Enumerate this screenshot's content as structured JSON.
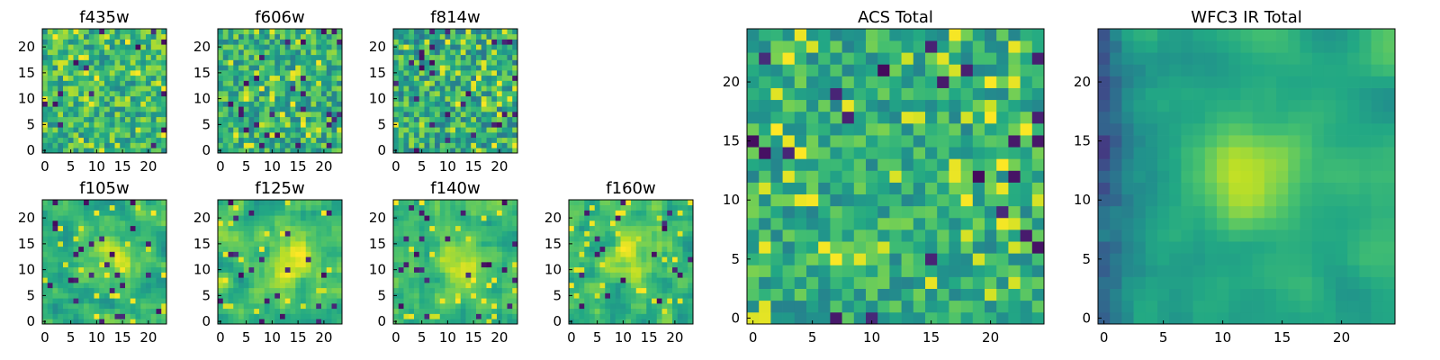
{
  "colormap": "viridis",
  "colors": {
    "low": "#440154",
    "mid": "#21918c",
    "high": "#fde725",
    "frame": "#000000"
  },
  "chart_data": [
    {
      "id": "f435w",
      "type": "heatmap",
      "title": "f435w",
      "grid_size": 24,
      "xlim": [
        0,
        24
      ],
      "ylim": [
        0,
        24
      ],
      "xticks": [
        0,
        5,
        10,
        15,
        20
      ],
      "yticks": [
        0,
        5,
        10,
        15,
        20
      ],
      "texture": "noise",
      "mean": 0.66,
      "spread": 0.22,
      "smooth": 0,
      "dark_rate": 0.04,
      "bright_rate": 0.06,
      "seed": 11
    },
    {
      "id": "f606w",
      "type": "heatmap",
      "title": "f606w",
      "grid_size": 24,
      "xlim": [
        0,
        24
      ],
      "ylim": [
        0,
        24
      ],
      "xticks": [
        0,
        5,
        10,
        15,
        20
      ],
      "yticks": [
        0,
        5,
        10,
        15,
        20
      ],
      "texture": "noise",
      "mean": 0.64,
      "spread": 0.22,
      "smooth": 0,
      "dark_rate": 0.04,
      "bright_rate": 0.06,
      "seed": 23
    },
    {
      "id": "f814w",
      "type": "heatmap",
      "title": "f814w",
      "grid_size": 24,
      "xlim": [
        0,
        24
      ],
      "ylim": [
        0,
        24
      ],
      "xticks": [
        0,
        5,
        10,
        15,
        20
      ],
      "yticks": [
        0,
        5,
        10,
        15,
        20
      ],
      "texture": "noise",
      "mean": 0.62,
      "spread": 0.24,
      "smooth": 0,
      "dark_rate": 0.05,
      "bright_rate": 0.06,
      "seed": 37
    },
    {
      "id": "f105w",
      "type": "heatmap",
      "title": "f105w",
      "grid_size": 24,
      "xlim": [
        0,
        24
      ],
      "ylim": [
        0,
        24
      ],
      "xticks": [
        0,
        5,
        10,
        15,
        20
      ],
      "yticks": [
        0,
        5,
        10,
        15,
        20
      ],
      "texture": "blob",
      "mean": 0.66,
      "spread": 0.18,
      "smooth": 1,
      "dark_rate": 0.05,
      "bright_rate": 0.04,
      "peak": [
        13,
        12
      ],
      "seed": 41
    },
    {
      "id": "f125w",
      "type": "heatmap",
      "title": "f125w",
      "grid_size": 24,
      "xlim": [
        0,
        24
      ],
      "ylim": [
        0,
        24
      ],
      "xticks": [
        0,
        5,
        10,
        15,
        20
      ],
      "yticks": [
        0,
        5,
        10,
        15,
        20
      ],
      "texture": "blob",
      "mean": 0.68,
      "spread": 0.2,
      "smooth": 1,
      "dark_rate": 0.05,
      "bright_rate": 0.05,
      "peak": [
        13,
        12
      ],
      "seed": 53
    },
    {
      "id": "f140w",
      "type": "heatmap",
      "title": "f140w",
      "grid_size": 24,
      "xlim": [
        0,
        24
      ],
      "ylim": [
        0,
        24
      ],
      "xticks": [
        0,
        5,
        10,
        15,
        20
      ],
      "yticks": [
        0,
        5,
        10,
        15,
        20
      ],
      "texture": "blob",
      "mean": 0.66,
      "spread": 0.16,
      "smooth": 1,
      "dark_rate": 0.03,
      "bright_rate": 0.04,
      "peak": [
        13,
        12
      ],
      "seed": 67
    },
    {
      "id": "f160w",
      "type": "heatmap",
      "title": "f160w",
      "grid_size": 24,
      "xlim": [
        0,
        24
      ],
      "ylim": [
        0,
        24
      ],
      "xticks": [
        0,
        5,
        10,
        15,
        20
      ],
      "yticks": [
        0,
        5,
        10,
        15,
        20
      ],
      "texture": "blob",
      "mean": 0.66,
      "spread": 0.18,
      "smooth": 1,
      "dark_rate": 0.04,
      "bright_rate": 0.05,
      "peak": [
        12,
        13
      ],
      "seed": 79
    },
    {
      "id": "acs-total",
      "type": "heatmap",
      "title": "ACS Total",
      "grid_size": 25,
      "xlim": [
        0,
        25
      ],
      "ylim": [
        0,
        25
      ],
      "xticks": [
        0,
        5,
        10,
        15,
        20
      ],
      "yticks": [
        0,
        5,
        10,
        15,
        20
      ],
      "texture": "noise",
      "mean": 0.62,
      "spread": 0.18,
      "smooth": 0,
      "dark_rate": 0.04,
      "bright_rate": 0.07,
      "seed": 97
    },
    {
      "id": "wfc3-ir-total",
      "type": "heatmap",
      "title": "WFC3 IR Total",
      "grid_size": 25,
      "xlim": [
        0,
        25
      ],
      "ylim": [
        0,
        25
      ],
      "xticks": [
        0,
        5,
        10,
        15,
        20
      ],
      "yticks": [
        0,
        5,
        10,
        15,
        20
      ],
      "texture": "blob",
      "mean": 0.62,
      "spread": 0.12,
      "smooth": 2,
      "dark_rate": 0.0,
      "bright_rate": 0.0,
      "peak": [
        12,
        12
      ],
      "dark_edge": "left",
      "seed": 113
    }
  ]
}
